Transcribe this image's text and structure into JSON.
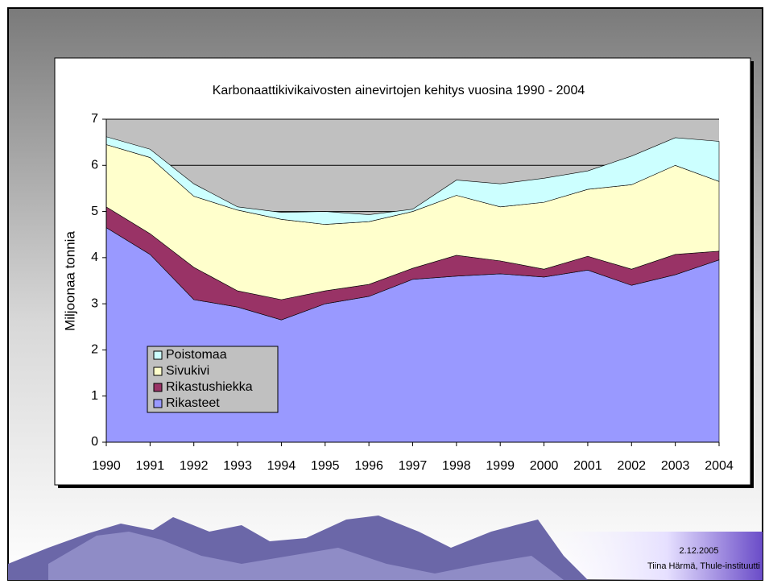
{
  "chart_data": {
    "type": "stacked-area",
    "title": "Karbonaattikivikaivosten ainevirtojen kehitys vuosina 1990 - 2004",
    "y_label": "Miljoonaa tonnia",
    "categories": [
      "1990",
      "1991",
      "1992",
      "1993",
      "1994",
      "1995",
      "1996",
      "1997",
      "1998",
      "1999",
      "2000",
      "2001",
      "2002",
      "2003",
      "2004"
    ],
    "series": [
      {
        "name": "Rikasteet",
        "color": "#9999ff",
        "values": [
          4.65,
          4.07,
          3.09,
          2.93,
          2.65,
          3.0,
          3.16,
          3.53,
          3.6,
          3.65,
          3.58,
          3.73,
          3.4,
          3.63,
          3.95
        ]
      },
      {
        "name": "Rikastushiekka",
        "color": "#993366",
        "values": [
          0.45,
          0.45,
          0.7,
          0.35,
          0.44,
          0.28,
          0.26,
          0.24,
          0.45,
          0.28,
          0.17,
          0.3,
          0.35,
          0.44,
          0.19
        ]
      },
      {
        "name": "Sivukivi",
        "color": "#ffffcc",
        "values": [
          1.35,
          1.65,
          1.54,
          1.75,
          1.74,
          1.44,
          1.36,
          1.23,
          1.3,
          1.17,
          1.45,
          1.45,
          1.83,
          1.93,
          1.51
        ]
      },
      {
        "name": "Poistomaa",
        "color": "#ccffff",
        "values": [
          0.17,
          0.18,
          0.27,
          0.07,
          0.15,
          0.28,
          0.15,
          0.05,
          0.33,
          0.5,
          0.52,
          0.4,
          0.62,
          0.6,
          0.87
        ]
      }
    ],
    "ylim": [
      0,
      7
    ],
    "yticks": [
      0,
      1,
      2,
      3,
      4,
      5,
      6,
      7
    ],
    "grid": true,
    "plot_background": "#c0c0c0",
    "legend": "lower-left"
  },
  "footer": {
    "date": "2.12.2005",
    "author": "Tiina Härmä, Thule-instituutti"
  }
}
